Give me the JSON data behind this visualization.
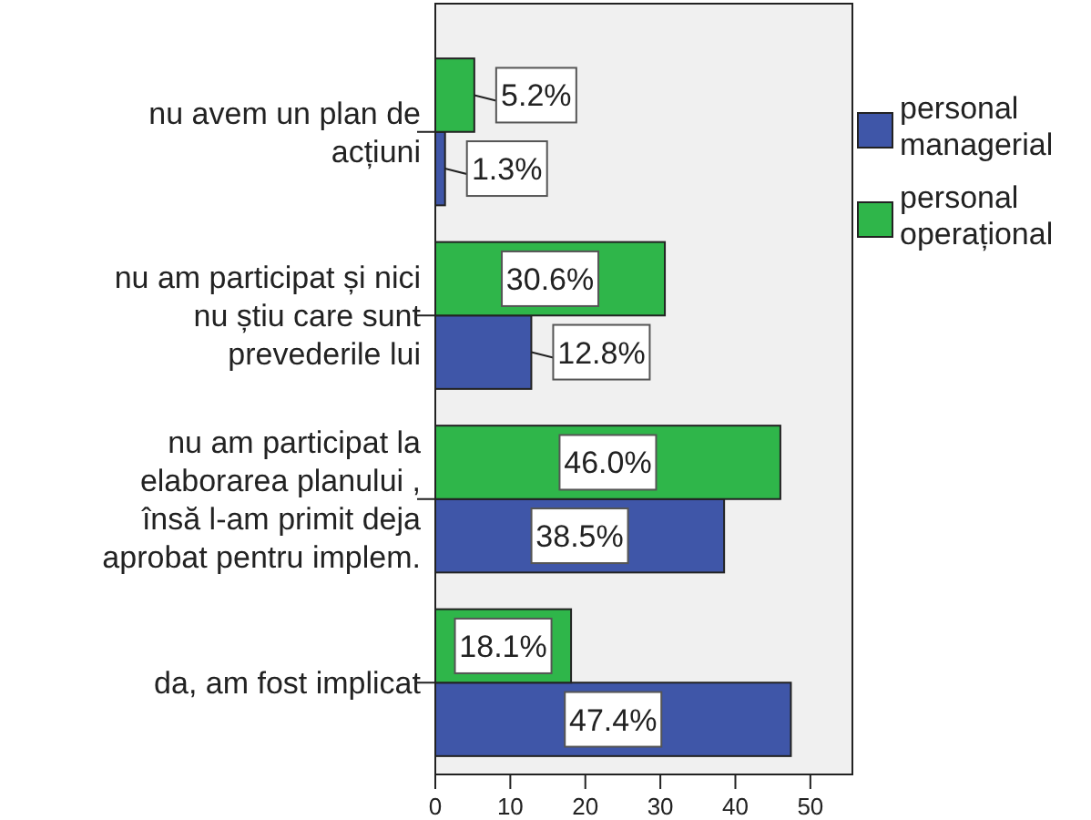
{
  "chart_data": {
    "type": "bar",
    "orientation": "horizontal",
    "categories": [
      "nu avem un plan de acțiuni",
      "nu am participat și nici nu știu care sunt prevederile lui",
      "nu am participat la elaborarea planului , însă l-am primit deja aprobat pentru implem.",
      "da, am fost implicat"
    ],
    "series": [
      {
        "name": "personal managerial",
        "color": "#3f56a8",
        "values": [
          1.3,
          12.8,
          38.5,
          47.4
        ],
        "value_labels": [
          "1.3%",
          "12.8%",
          "38.5%",
          "47.4%"
        ]
      },
      {
        "name": "personal operațional",
        "color": "#2fb64a",
        "values": [
          5.2,
          30.6,
          46.0,
          18.1
        ],
        "value_labels": [
          "5.2%",
          "30.6%",
          "46.0%",
          "18.1%"
        ]
      }
    ],
    "xlim": [
      0,
      55.6
    ],
    "xticks": [
      0,
      10,
      20,
      30,
      40,
      50
    ],
    "legend": "right",
    "grid": false
  }
}
